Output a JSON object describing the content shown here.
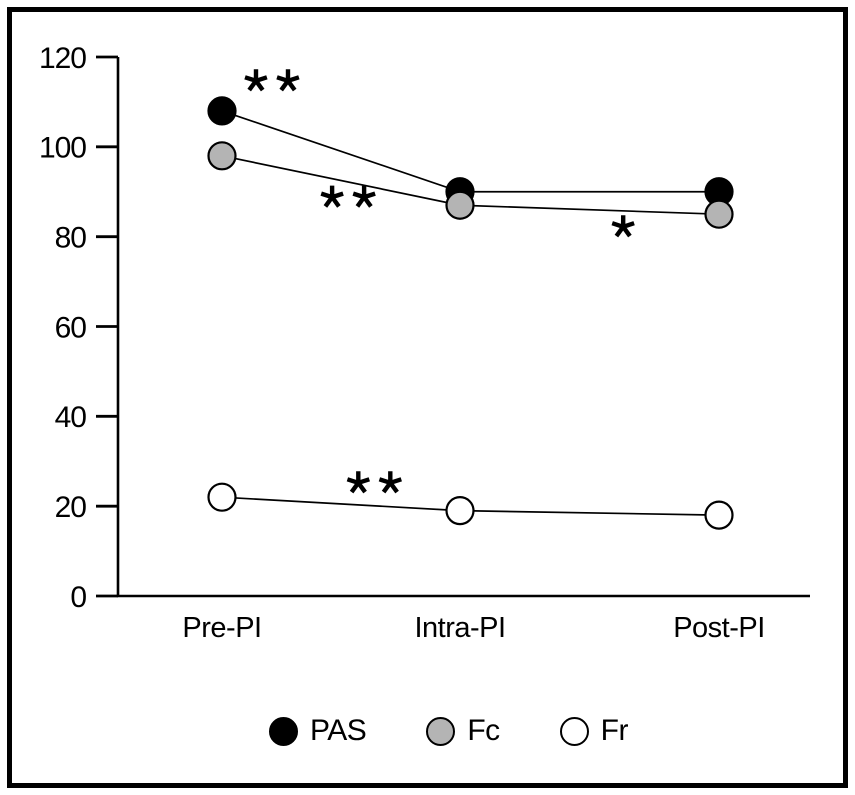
{
  "figure": {
    "background_color": "#ffffff",
    "frame_color": "#000000"
  },
  "chart_data": {
    "type": "line",
    "title": "",
    "xlabel": "",
    "ylabel": "",
    "categories": [
      "Pre-PI",
      "Intra-PI",
      "Post-PI"
    ],
    "series": [
      {
        "name": "PAS",
        "values": [
          108,
          90,
          90
        ],
        "marker_fill": "#000000"
      },
      {
        "name": "Fc",
        "values": [
          98,
          87,
          85
        ],
        "marker_fill": "#b4b4b4"
      },
      {
        "name": "Fr",
        "values": [
          22,
          19,
          18
        ],
        "marker_fill": "#ffffff"
      }
    ],
    "line_color": "#000000",
    "ylim": [
      0,
      120
    ],
    "yticks": [
      0,
      20,
      40,
      60,
      80,
      100,
      120
    ],
    "grid": false,
    "legend_position": "bottom",
    "annotations": [
      {
        "text": "**",
        "stars": 2,
        "x_cat": 0.21,
        "y_val": 114.7
      },
      {
        "text": "**",
        "stars": 2,
        "x_cat": 0.53,
        "y_val": 88.8
      },
      {
        "text": "*",
        "stars": 1,
        "x_cat": 1.63,
        "y_val": 82.2
      },
      {
        "text": "**",
        "stars": 2,
        "x_cat": 0.64,
        "y_val": 25.2
      }
    ]
  },
  "legend": {
    "items": [
      {
        "label": "PAS"
      },
      {
        "label": "Fc"
      },
      {
        "label": "Fr"
      }
    ]
  }
}
